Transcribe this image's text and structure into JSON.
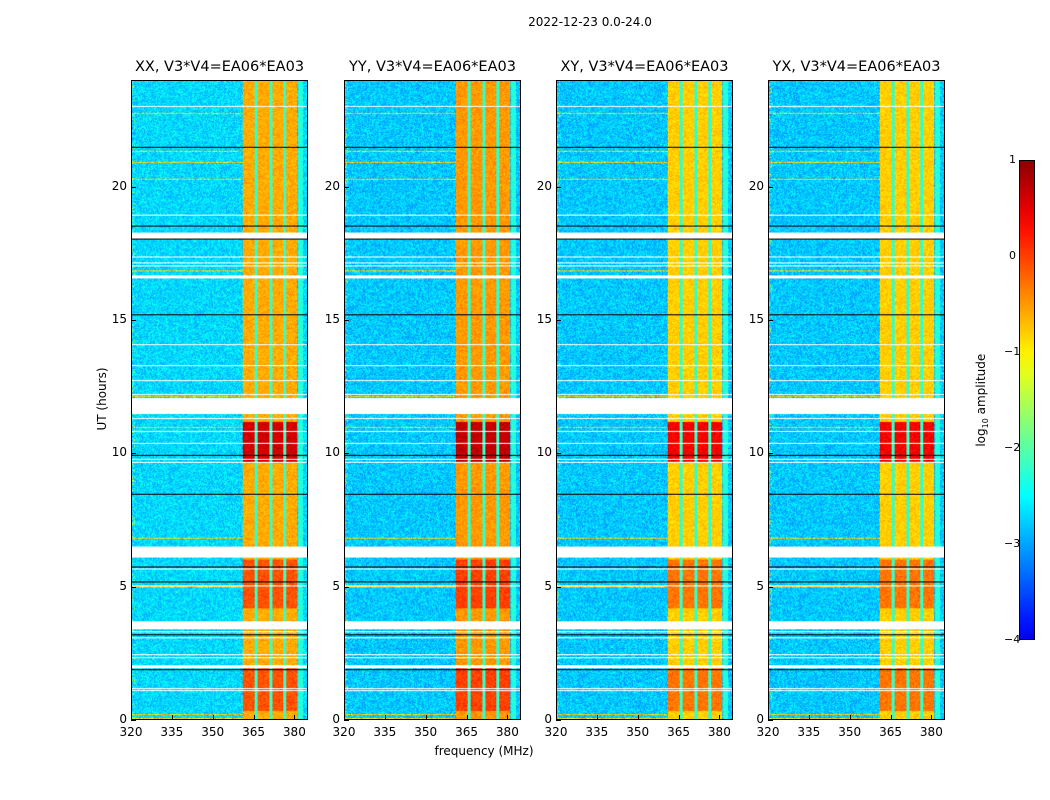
{
  "chart_data": {
    "type": "heatmap",
    "title": "2022-12-23 0.0-24.0",
    "xlabel": "frequency (MHz)",
    "ylabel": "UT (hours)",
    "xlim": [
      320,
      385
    ],
    "ylim": [
      0,
      24
    ],
    "xticks": [
      "320",
      "335",
      "350",
      "365",
      "380"
    ],
    "xtick_values": [
      320,
      335,
      350,
      365,
      380
    ],
    "yticks": [
      "0",
      "5",
      "10",
      "15",
      "20"
    ],
    "ytick_values": [
      0,
      5,
      10,
      15,
      20
    ],
    "panels": [
      {
        "title": "XX, V3*V4=EA06*EA03",
        "band_level": -0.6,
        "background_level": -2.7
      },
      {
        "title": "YY, V3*V4=EA06*EA03",
        "band_level": -0.5,
        "background_level": -2.8
      },
      {
        "title": "XY, V3*V4=EA06*EA03",
        "band_level": -0.8,
        "background_level": -2.8
      },
      {
        "title": "YX, V3*V4=EA06*EA03",
        "band_level": -0.8,
        "background_level": -2.8
      }
    ],
    "bright_band_mhz": [
      361,
      381
    ],
    "band_gaps_mhz": [
      366,
      371.5,
      376.5
    ],
    "strong_rfi_hours": [
      [
        9.7,
        11.2
      ],
      [
        0.3,
        2.0
      ],
      [
        4.2,
        6.0
      ]
    ],
    "flagged_hours": [
      [
        18.1,
        18.3
      ],
      [
        6.1,
        6.5
      ],
      [
        3.4,
        3.7
      ],
      [
        11.5,
        12.1
      ],
      [
        16.6,
        16.7
      ],
      [
        1.95,
        2.05
      ]
    ],
    "colorbar": {
      "label": "log10 amplitude",
      "label_main": "log",
      "label_sub": "10",
      "label_rest": " amplitude",
      "range": [
        -4,
        1
      ],
      "ticks": [
        "1",
        "0",
        "−1",
        "−2",
        "−3",
        "−4"
      ],
      "tick_values": [
        1,
        0,
        -1,
        -2,
        -3,
        -4
      ],
      "colormap": "jet"
    }
  }
}
